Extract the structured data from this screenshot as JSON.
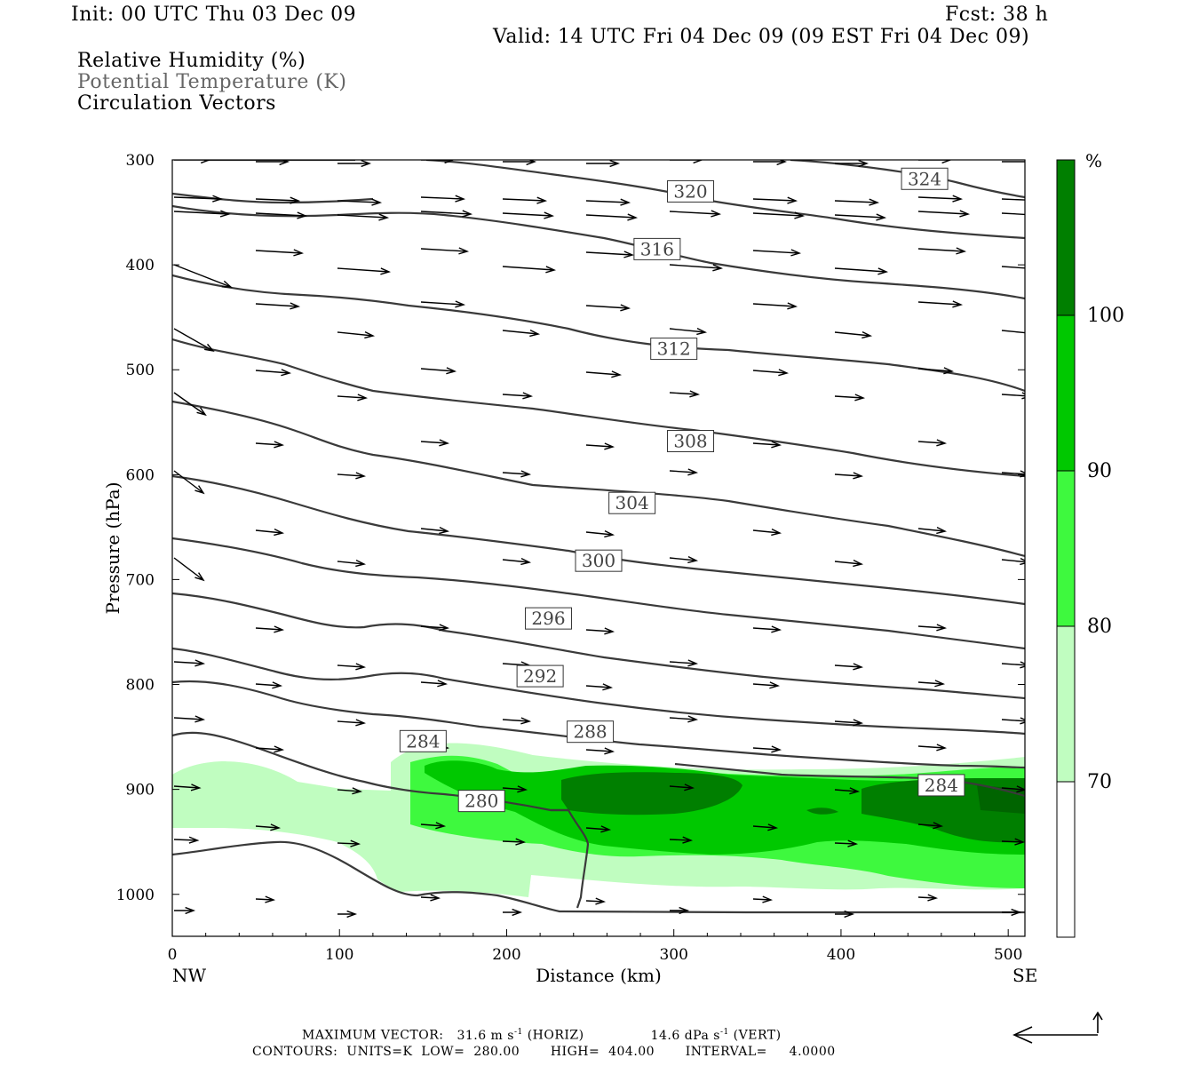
{
  "header": {
    "init": "Init: 00 UTC Thu 03 Dec 09",
    "fcst": "Fcst:   38 h",
    "valid": "Valid: 14 UTC Fri 04 Dec 09 (09 EST Fri 04 Dec 09)"
  },
  "legend": {
    "line1": "Relative Humidity (%)",
    "line2": "Potential Temperature (K)",
    "line3": "Circulation Vectors"
  },
  "footer": {
    "max_vector_label": "MAXIMUM VECTOR:",
    "horiz_value": "31.6 m s",
    "horiz_suffix": " (HORIZ)",
    "vert_value": "14.6 dPa s",
    "vert_suffix": " (VERT)",
    "exp": "-1",
    "contours": "CONTOURS:  UNITS=K  LOW=  280.00       HIGH=  404.00       INTERVAL=     4.0000"
  },
  "colors": {
    "rh70": "#c0fdc0",
    "rh80": "#3ef93e",
    "rh90": "#00c800",
    "rh100": "#007f00",
    "contour": "#3a3a3a"
  },
  "chart_data": {
    "type": "cross-section",
    "xlabel": "Distance (km)",
    "ylabel": "Pressure (hPa)",
    "xlim": [
      0,
      510
    ],
    "ylim": [
      1040,
      300
    ],
    "x_ticks": [
      "0",
      "100",
      "200",
      "300",
      "400",
      "500"
    ],
    "y_ticks": [
      "300",
      "400",
      "500",
      "600",
      "700",
      "800",
      "900",
      "1000"
    ],
    "left_end_label": "NW",
    "right_end_label": "SE",
    "colorbar": {
      "unit": "%",
      "levels": [
        "70",
        "80",
        "90",
        "100"
      ]
    },
    "theta_contour_labels": [
      {
        "value": "324",
        "x": 450,
        "p": 318
      },
      {
        "value": "320",
        "x": 310,
        "p": 330
      },
      {
        "value": "316",
        "x": 290,
        "p": 385
      },
      {
        "value": "312",
        "x": 300,
        "p": 480
      },
      {
        "value": "308",
        "x": 310,
        "p": 568
      },
      {
        "value": "304",
        "x": 275,
        "p": 627
      },
      {
        "value": "300",
        "x": 255,
        "p": 682
      },
      {
        "value": "296",
        "x": 225,
        "p": 737
      },
      {
        "value": "292",
        "x": 220,
        "p": 792
      },
      {
        "value": "288",
        "x": 250,
        "p": 845
      },
      {
        "value": "284",
        "x": 150,
        "p": 854
      },
      {
        "value": "284",
        "x": 460,
        "p": 896
      },
      {
        "value": "280",
        "x": 185,
        "p": 911
      }
    ]
  }
}
